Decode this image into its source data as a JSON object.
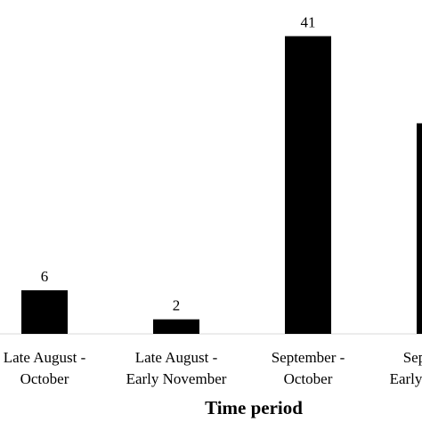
{
  "chart_data": {
    "type": "bar",
    "x_label": "Time period",
    "categories": [
      "Late August - October",
      "Late August - Early November",
      "September - October",
      "September - Early November"
    ],
    "values": [
      6,
      2,
      41,
      29
    ],
    "color": "#000000",
    "ylim": [
      0,
      45
    ]
  }
}
